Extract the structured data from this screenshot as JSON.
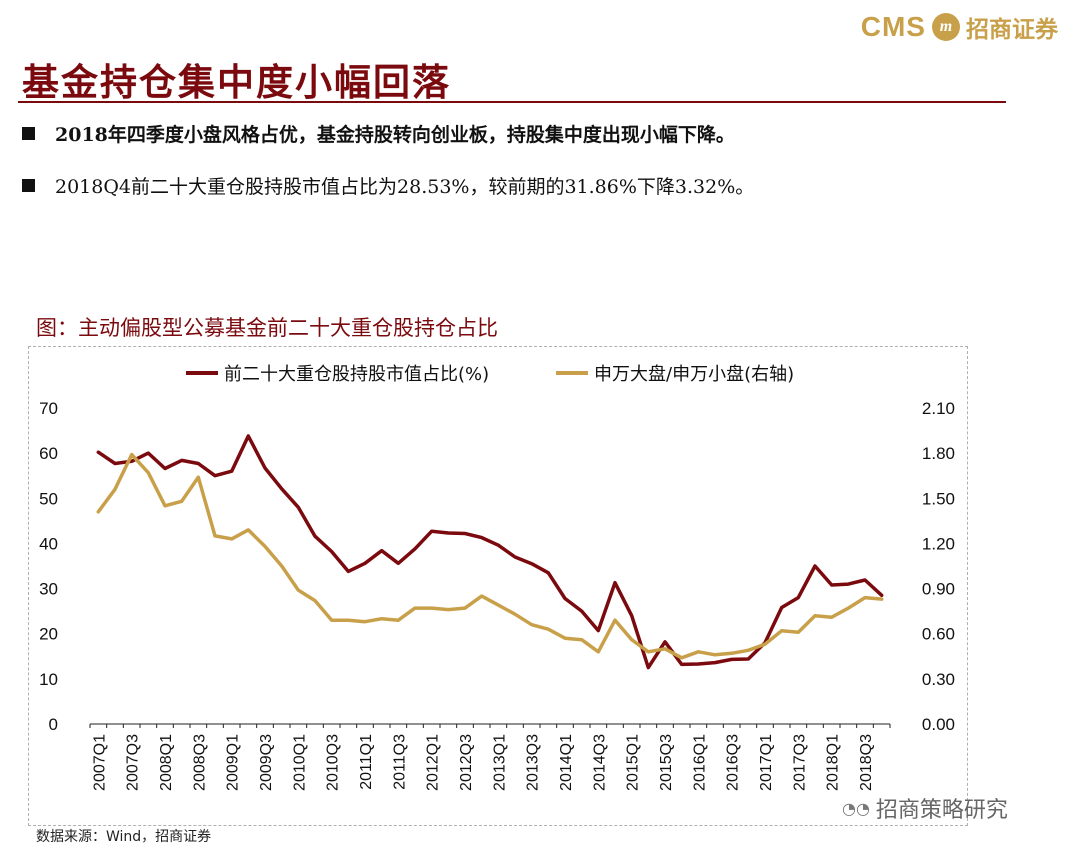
{
  "header": {
    "logo_text": "CMS",
    "logo_badge": "m",
    "logo_cn": "招商证券"
  },
  "title": "基金持仓集中度小幅回落",
  "bullets": [
    "2018年四季度小盘风格占优，基金持股转向创业板，持股集中度出现小幅下降。",
    "2018Q4前二十大重仓股持股市值占比为28.53%，较前期的31.86%下降3.32%。"
  ],
  "figure_title": "图：主动偏股型公募基金前二十大重仓股持仓占比",
  "source": "数据来源：Wind，招商证券",
  "watermark": "招商策略研究",
  "colors": {
    "series1": "#7b0a0f",
    "series2": "#c9a04a",
    "title": "#7b0a0f"
  },
  "chart_data": {
    "type": "line",
    "title": "图：主动偏股型公募基金前二十大重仓股持仓占比",
    "x": [
      "2007Q1",
      "2007Q2",
      "2007Q3",
      "2007Q4",
      "2008Q1",
      "2008Q2",
      "2008Q3",
      "2008Q4",
      "2009Q1",
      "2009Q2",
      "2009Q3",
      "2009Q4",
      "2010Q1",
      "2010Q2",
      "2010Q3",
      "2010Q4",
      "2011Q1",
      "2011Q2",
      "2011Q3",
      "2011Q4",
      "2012Q1",
      "2012Q2",
      "2012Q3",
      "2012Q4",
      "2013Q1",
      "2013Q2",
      "2013Q3",
      "2013Q4",
      "2014Q1",
      "2014Q2",
      "2014Q3",
      "2014Q4",
      "2015Q1",
      "2015Q2",
      "2015Q3",
      "2015Q4",
      "2016Q1",
      "2016Q2",
      "2016Q3",
      "2016Q4",
      "2017Q1",
      "2017Q2",
      "2017Q3",
      "2017Q4",
      "2018Q1",
      "2018Q2",
      "2018Q3",
      "2018Q4"
    ],
    "xtick_labels": [
      "2007Q1",
      "2007Q3",
      "2008Q1",
      "2008Q3",
      "2009Q1",
      "2009Q3",
      "2010Q1",
      "2010Q3",
      "2011Q1",
      "2011Q3",
      "2012Q1",
      "2012Q3",
      "2013Q1",
      "2013Q3",
      "2014Q1",
      "2014Q3",
      "2015Q1",
      "2015Q3",
      "2016Q1",
      "2016Q3",
      "2017Q1",
      "2017Q3",
      "2018Q1",
      "2018Q3"
    ],
    "y_left": {
      "ylim": [
        0,
        70
      ],
      "ticks": [
        "0",
        "10",
        "20",
        "30",
        "40",
        "50",
        "60",
        "70"
      ]
    },
    "y_right": {
      "ylim": [
        0,
        2.1
      ],
      "ticks": [
        "0.00",
        "0.30",
        "0.60",
        "0.90",
        "1.20",
        "1.50",
        "1.80",
        "2.10"
      ]
    },
    "series": [
      {
        "name": "前二十大重仓股持股市值占比(%)",
        "axis": "left",
        "values": [
          60.2,
          57.7,
          58.2,
          60.0,
          56.6,
          58.4,
          57.7,
          55.0,
          56.0,
          63.8,
          56.7,
          52.1,
          48.0,
          41.6,
          38.2,
          33.8,
          35.6,
          38.4,
          35.6,
          38.8,
          42.7,
          42.3,
          42.2,
          41.3,
          39.6,
          37.0,
          35.5,
          33.5,
          27.8,
          25.0,
          20.7,
          31.3,
          24.0,
          12.5,
          18.2,
          13.2,
          13.3,
          13.6,
          14.3,
          14.4,
          18.0,
          25.8,
          28.0,
          35.0,
          30.8,
          31.0,
          31.9,
          28.5
        ]
      },
      {
        "name": "申万大盘/申万小盘(右轴)",
        "axis": "right",
        "values": [
          1.41,
          1.56,
          1.79,
          1.67,
          1.45,
          1.48,
          1.64,
          1.25,
          1.23,
          1.29,
          1.18,
          1.05,
          0.89,
          0.82,
          0.69,
          0.69,
          0.68,
          0.7,
          0.69,
          0.77,
          0.77,
          0.76,
          0.77,
          0.85,
          0.79,
          0.73,
          0.66,
          0.63,
          0.57,
          0.56,
          0.48,
          0.69,
          0.56,
          0.48,
          0.5,
          0.44,
          0.48,
          0.46,
          0.47,
          0.49,
          0.53,
          0.62,
          0.61,
          0.72,
          0.71,
          0.77,
          0.84,
          0.83
        ]
      }
    ],
    "legend": "top-center",
    "grid": false
  }
}
